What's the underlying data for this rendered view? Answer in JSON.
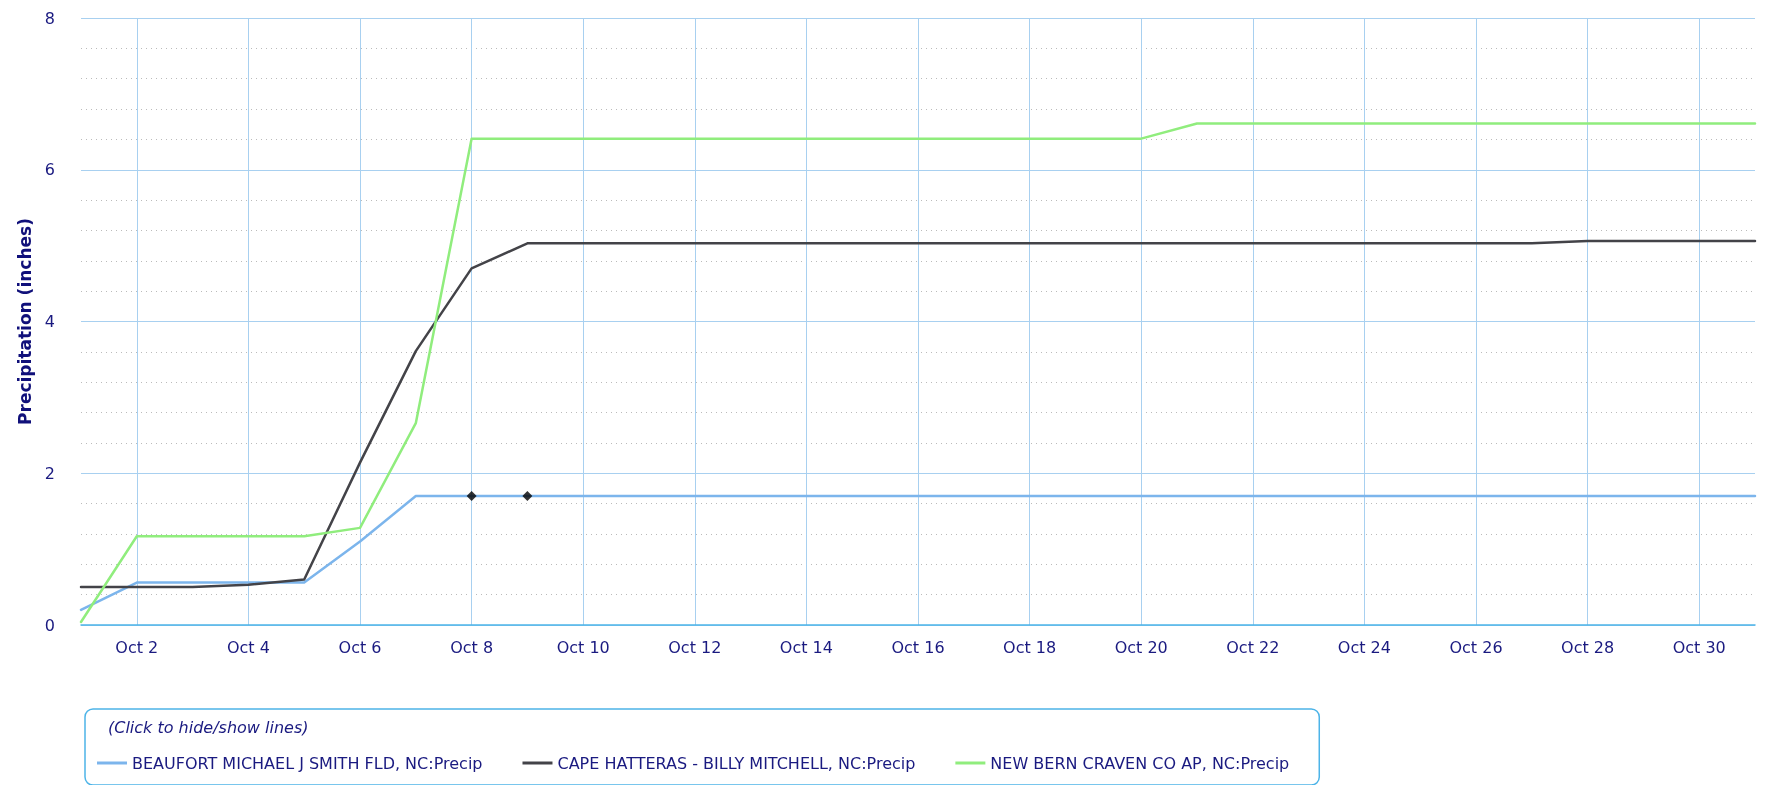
{
  "chart_data": {
    "type": "line",
    "ylabel": "Precipitation (inches)",
    "legend_title": "(Click to hide/show lines)",
    "x": [
      "--10-01",
      "--10-02",
      "--10-03",
      "--10-04",
      "--10-05",
      "--10-06",
      "--10-07",
      "--10-08",
      "--10-09",
      "--10-10",
      "--10-11",
      "--10-12",
      "--10-13",
      "--10-14",
      "--10-15",
      "--10-16",
      "--10-17",
      "--10-18",
      "--10-19",
      "--10-20",
      "--10-21",
      "--10-22",
      "--10-23",
      "--10-24",
      "--10-25",
      "--10-26",
      "--10-27",
      "--10-28",
      "--10-29",
      "--10-30",
      "--10-31"
    ],
    "series": [
      {
        "name": "BEAUFORT MICHAEL J SMITH FLD, NC:Precip",
        "color": "#7cb5ec",
        "values": [
          0.2,
          0.56,
          0.56,
          0.56,
          0.56,
          1.1,
          1.7,
          1.7,
          1.7,
          1.7,
          1.7,
          1.7,
          1.7,
          1.7,
          1.7,
          1.7,
          1.7,
          1.7,
          1.7,
          1.7,
          1.7,
          1.7,
          1.7,
          1.7,
          1.7,
          1.7,
          1.7,
          1.7,
          1.7,
          1.7,
          1.7
        ]
      },
      {
        "name": "CAPE HATTERAS - BILLY MITCHELL, NC:Precip",
        "color": "#434348",
        "values": [
          0.5,
          0.5,
          0.5,
          0.53,
          0.6,
          2.14,
          3.61,
          4.7,
          5.03,
          5.03,
          5.03,
          5.03,
          5.03,
          5.03,
          5.03,
          5.03,
          5.03,
          5.03,
          5.03,
          5.03,
          5.03,
          5.03,
          5.03,
          5.03,
          5.03,
          5.03,
          5.03,
          5.06,
          5.06,
          5.06,
          5.06
        ]
      },
      {
        "name": "NEW BERN CRAVEN CO AP, NC:Precip",
        "color": "#90ed7d",
        "values": [
          0.04,
          1.17,
          1.17,
          1.17,
          1.17,
          1.28,
          2.66,
          6.41,
          6.41,
          6.41,
          6.41,
          6.41,
          6.41,
          6.41,
          6.41,
          6.41,
          6.41,
          6.41,
          6.41,
          6.41,
          6.61,
          6.61,
          6.61,
          6.61,
          6.61,
          6.61,
          6.61,
          6.61,
          6.61,
          6.61,
          6.61
        ]
      },
      {
        "type": "scatter",
        "marker": "diamond",
        "color": "#000000",
        "x": [
          "--10-08",
          "--10-09"
        ],
        "values": [
          1.7,
          1.7
        ]
      }
    ],
    "xlim": [
      "--10-01",
      "--10-31"
    ],
    "xticks": [
      {
        "value": "--10-02",
        "label": "Oct 2"
      },
      {
        "value": "--10-04",
        "label": "Oct 4"
      },
      {
        "value": "--10-06",
        "label": "Oct 6"
      },
      {
        "value": "--10-08",
        "label": "Oct 8"
      },
      {
        "value": "--10-10",
        "label": "Oct 10"
      },
      {
        "value": "--10-12",
        "label": "Oct 12"
      },
      {
        "value": "--10-14",
        "label": "Oct 14"
      },
      {
        "value": "--10-16",
        "label": "Oct 16"
      },
      {
        "value": "--10-18",
        "label": "Oct 18"
      },
      {
        "value": "--10-20",
        "label": "Oct 20"
      },
      {
        "value": "--10-22",
        "label": "Oct 22"
      },
      {
        "value": "--10-24",
        "label": "Oct 24"
      },
      {
        "value": "--10-26",
        "label": "Oct 26"
      },
      {
        "value": "--10-28",
        "label": "Oct 28"
      },
      {
        "value": "--10-30",
        "label": "Oct 30"
      }
    ],
    "ylim": [
      0,
      8
    ],
    "yticks": [
      0,
      2,
      4,
      6,
      8
    ],
    "grid": true,
    "legend": "bottom",
    "marker": "none",
    "line_style": "solid"
  }
}
